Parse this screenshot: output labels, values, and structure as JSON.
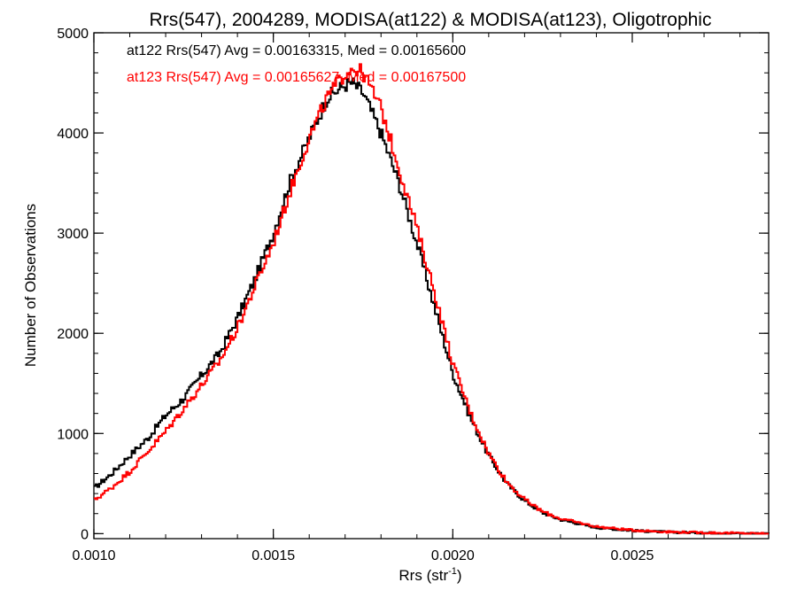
{
  "chart_data": {
    "type": "line",
    "title": "Rrs(547), 2004289, MODISA(at122) & MODISA(at123), Oligotrophic",
    "xlabel": "Rrs (str",
    "xlabel_superscript": "-1",
    "xlabel_suffix": ")",
    "ylabel": "Number of Observations",
    "xlim": [
      0.001,
      0.00288
    ],
    "ylim": [
      -50,
      5000
    ],
    "xticks": [
      0.001,
      0.0015,
      0.002,
      0.0025
    ],
    "xtick_labels": [
      "0.0010",
      "0.0015",
      "0.0020",
      "0.0025"
    ],
    "yticks": [
      0,
      1000,
      2000,
      3000,
      4000,
      5000
    ],
    "ytick_labels": [
      "0",
      "1000",
      "2000",
      "3000",
      "4000",
      "5000"
    ],
    "annotations": [
      {
        "text": "at122 Rrs(547) Avg = 0.00163315, Med = 0.00165600",
        "color": "#000000"
      },
      {
        "text": "at123 Rrs(547) Avg = 0.00165627, Med = 0.00167500",
        "color": "#ff0000"
      }
    ],
    "series": [
      {
        "color": "#000000",
        "x": [
          0.001,
          0.00105,
          0.0011,
          0.00115,
          0.0012,
          0.00125,
          0.0013,
          0.00135,
          0.0014,
          0.00145,
          0.0015,
          0.00155,
          0.0016,
          0.00165,
          0.0017,
          0.00172,
          0.00175,
          0.0018,
          0.00185,
          0.0019,
          0.00195,
          0.002,
          0.00205,
          0.0021,
          0.00215,
          0.0022,
          0.00225,
          0.0023,
          0.0024,
          0.0025,
          0.0026,
          0.0027,
          0.0028,
          0.00288
        ],
        "y": [
          450,
          600,
          780,
          950,
          1180,
          1350,
          1580,
          1800,
          2150,
          2550,
          3000,
          3550,
          3950,
          4350,
          4480,
          4500,
          4400,
          4000,
          3500,
          2900,
          2250,
          1600,
          1150,
          780,
          500,
          330,
          210,
          140,
          60,
          30,
          15,
          8,
          3,
          0
        ]
      },
      {
        "color": "#ff0000",
        "x": [
          0.001,
          0.00105,
          0.0011,
          0.00115,
          0.0012,
          0.00125,
          0.0013,
          0.00135,
          0.0014,
          0.00145,
          0.0015,
          0.00155,
          0.0016,
          0.00165,
          0.0017,
          0.00172,
          0.00175,
          0.0018,
          0.00185,
          0.0019,
          0.00195,
          0.002,
          0.00205,
          0.0021,
          0.00215,
          0.0022,
          0.00225,
          0.0023,
          0.0024,
          0.0025,
          0.0026,
          0.0027,
          0.0028,
          0.00288
        ],
        "y": [
          330,
          460,
          620,
          820,
          1020,
          1250,
          1480,
          1720,
          2050,
          2480,
          2900,
          3450,
          3950,
          4350,
          4600,
          4650,
          4600,
          4250,
          3650,
          3050,
          2400,
          1700,
          1200,
          800,
          520,
          340,
          220,
          150,
          70,
          35,
          18,
          10,
          4,
          0
        ]
      }
    ]
  }
}
